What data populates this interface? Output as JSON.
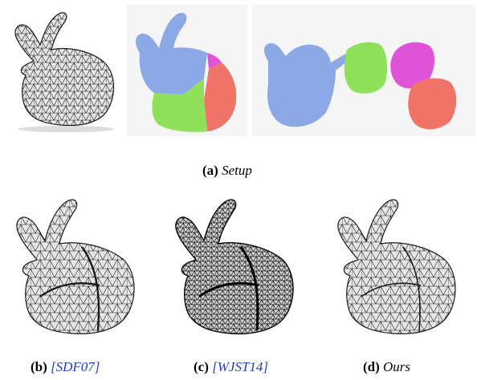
{
  "figure": {
    "captions": {
      "a": {
        "letter": "(a)",
        "text": "Setup"
      },
      "b": {
        "letter": "(b)",
        "text": "[SDF07]",
        "link": true
      },
      "c": {
        "letter": "(c)",
        "text": "[WJST14]",
        "link": true
      },
      "d": {
        "letter": "(d)",
        "text": "Ours"
      }
    },
    "colors": {
      "mesh_fill": "#e6e6e6",
      "mesh_line": "#1a1a1a",
      "fragment_blue": "#8da8e6",
      "fragment_green": "#8fe05a",
      "fragment_red": "#f07468",
      "fragment_magenta": "#e054d8",
      "citation": "#1f3fbf"
    }
  }
}
